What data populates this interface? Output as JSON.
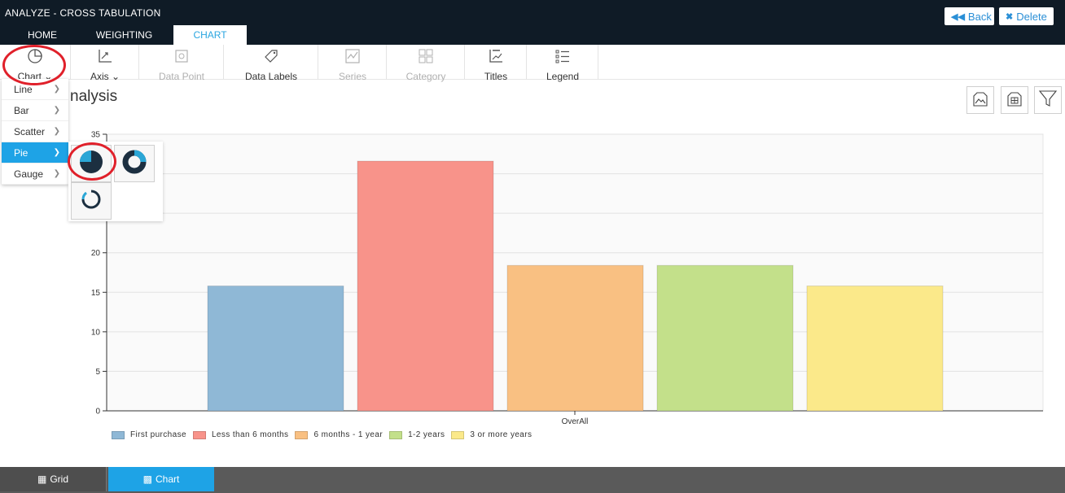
{
  "app": {
    "title": "ANALYZE - CROSS TABULATION",
    "back_label": "Back",
    "delete_label": "Delete"
  },
  "tabs": [
    {
      "label": "HOME"
    },
    {
      "label": "WEIGHTING"
    },
    {
      "label": "CHART",
      "active": true
    }
  ],
  "ribbon": [
    {
      "label": "Chart",
      "icon": "pie-chart-icon",
      "enabled": true
    },
    {
      "label": "Axis",
      "icon": "axis-icon",
      "enabled": true
    },
    {
      "label": "Data Point",
      "icon": "data-point-icon",
      "enabled": false
    },
    {
      "label": "Data Labels",
      "icon": "tag-icon",
      "enabled": true
    },
    {
      "label": "Series",
      "icon": "series-icon",
      "enabled": false
    },
    {
      "label": "Category",
      "icon": "category-grid-icon",
      "enabled": false
    },
    {
      "label": "Titles",
      "icon": "titles-icon",
      "enabled": true
    },
    {
      "label": "Legend",
      "icon": "legend-icon",
      "enabled": true
    }
  ],
  "page_title": "nalysis",
  "chart_menu": [
    {
      "label": "Line"
    },
    {
      "label": "Bar"
    },
    {
      "label": "Scatter"
    },
    {
      "label": "Pie",
      "active": true
    },
    {
      "label": "Gauge"
    }
  ],
  "pie_options": [
    "pie-icon",
    "donut-icon",
    "semi-donut-icon"
  ],
  "chart_data": {
    "type": "bar",
    "categories": [
      "OverAll"
    ],
    "series": [
      {
        "name": "First purchase",
        "values": [
          15.8
        ],
        "color": "#8fb8d6"
      },
      {
        "name": "Less than 6 months",
        "values": [
          31.6
        ],
        "color": "#f8938a"
      },
      {
        "name": "6 months - 1 year",
        "values": [
          18.4
        ],
        "color": "#f9c082"
      },
      {
        "name": "1-2 years",
        "values": [
          18.4
        ],
        "color": "#c3e08a"
      },
      {
        "name": "3 or more years",
        "values": [
          15.8
        ],
        "color": "#fbe98a"
      }
    ],
    "yticks": [
      "0",
      "5",
      "10",
      "15",
      "20",
      "35"
    ],
    "ylim": [
      0,
      35
    ],
    "grid": true,
    "legend_position": "bottom-left"
  },
  "bottom_tabs": [
    {
      "label": "Grid"
    },
    {
      "label": "Chart",
      "active": true
    }
  ]
}
